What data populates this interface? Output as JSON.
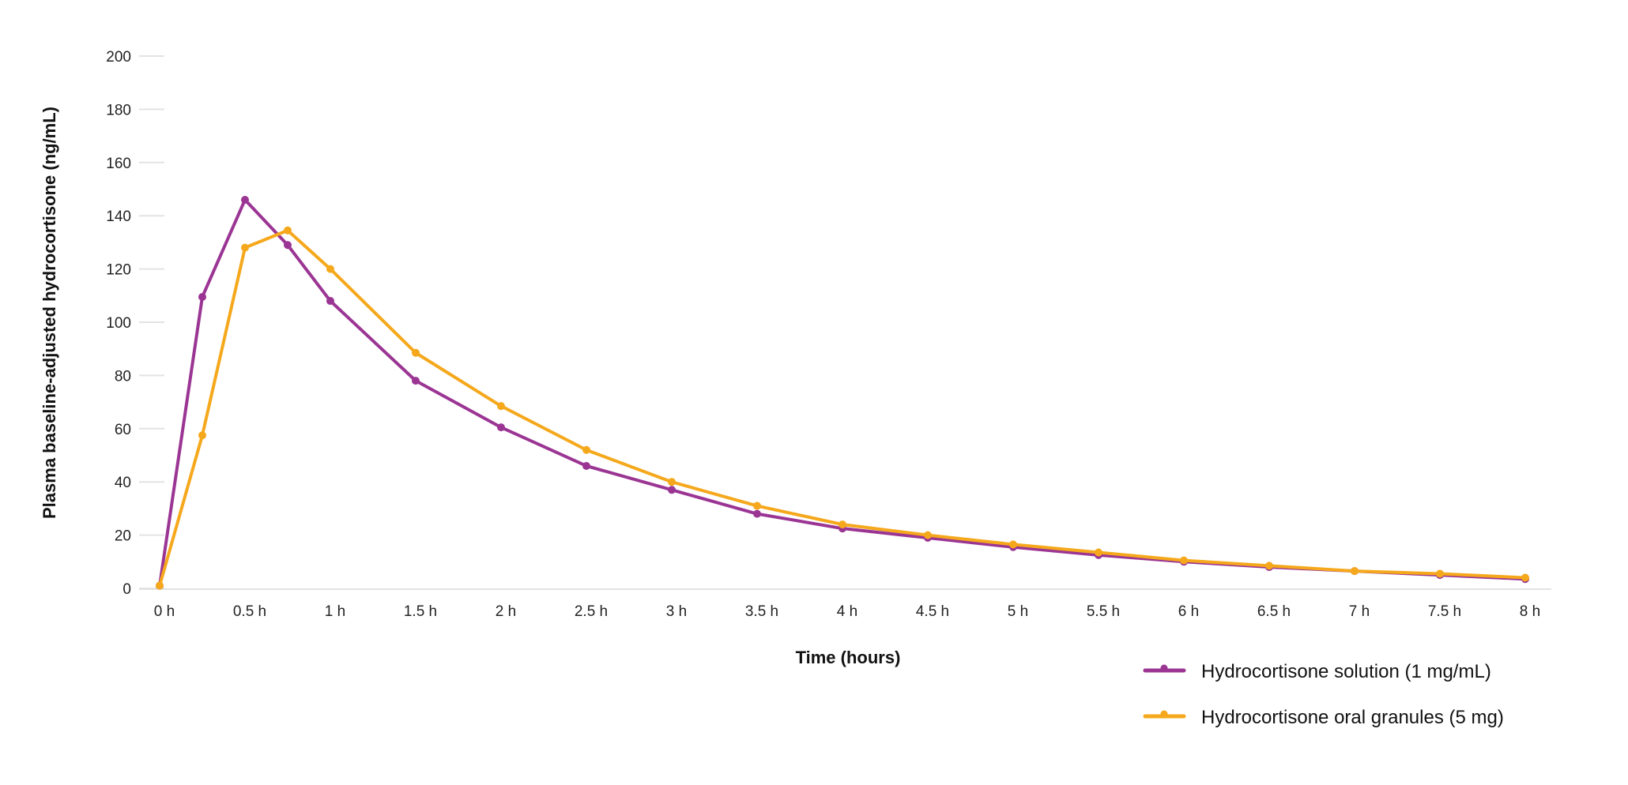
{
  "chart_data": {
    "type": "line",
    "title": "",
    "xlabel": "Time (hours)",
    "ylabel": "Plasma baseline-adjusted hydrocortisone (ng/mL)",
    "xlim": [
      0,
      8
    ],
    "ylim": [
      0,
      200
    ],
    "y_ticks": [
      0,
      20,
      40,
      60,
      80,
      100,
      120,
      140,
      160,
      180,
      200
    ],
    "x_ticks": [
      0,
      0.5,
      1,
      1.5,
      2,
      2.5,
      3,
      3.5,
      4,
      4.5,
      5,
      5.5,
      6,
      6.5,
      7,
      7.5,
      8
    ],
    "x_tick_labels": [
      "0 h",
      "0.5 h",
      "1 h",
      "1.5 h",
      "2 h",
      "2.5 h",
      "3 h",
      "3.5 h",
      "4 h",
      "4.5 h",
      "5 h",
      "5.5 h",
      "6 h",
      "6.5 h",
      "7 h",
      "7.5 h",
      "8 h"
    ],
    "grid": "horizontal",
    "legend_position": "bottom-right",
    "series": [
      {
        "name": "Hydrocortisone solution (1 mg/mL)",
        "color": "#9b3594",
        "x": [
          0,
          0.25,
          0.5,
          0.75,
          1,
          1.5,
          2,
          2.5,
          3,
          3.5,
          4,
          4.5,
          5,
          5.5,
          6,
          6.5,
          7,
          7.5,
          8
        ],
        "y": [
          1,
          109.5,
          146,
          129,
          108,
          78,
          60.5,
          46,
          37,
          28,
          22.5,
          19,
          15.5,
          12.5,
          10,
          8,
          6.5,
          5,
          3.5
        ]
      },
      {
        "name": "Hydrocortisone oral granules (5 mg)",
        "color": "#f5a81c",
        "x": [
          0,
          0.25,
          0.5,
          0.75,
          1,
          1.5,
          2,
          2.5,
          3,
          3.5,
          4,
          4.5,
          5,
          5.5,
          6,
          6.5,
          7,
          7.5,
          8
        ],
        "y": [
          1,
          57.5,
          128,
          134.5,
          120,
          88.5,
          68.5,
          52,
          40,
          31,
          24,
          20,
          16.5,
          13.5,
          10.5,
          8.5,
          6.5,
          5.5,
          4
        ]
      }
    ]
  }
}
